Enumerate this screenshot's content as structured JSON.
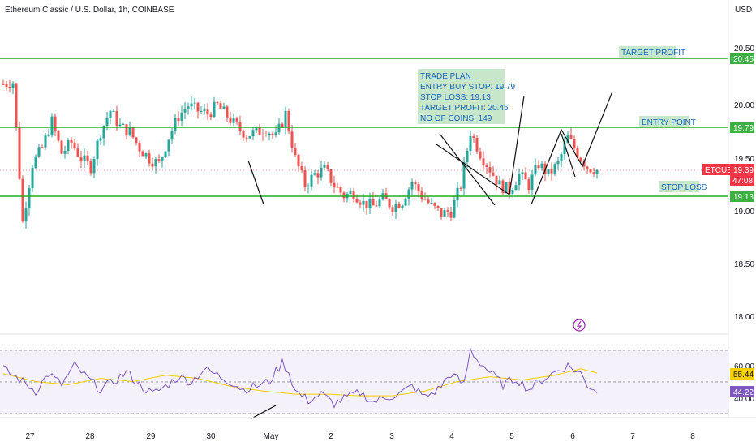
{
  "header": {
    "title": "Ethereum Classic / U.S. Dollar, 1h, COINBASE"
  },
  "currency_label": "USD",
  "colors": {
    "up": "#26a69a",
    "down": "#ef5350",
    "level_line": "#22aa22",
    "level_tag": "#3cb043",
    "label_bg": "#c8e6c9",
    "label_text": "#1565c0",
    "rsi_line": "#7e57c2",
    "rsi_ma": "#f5d000",
    "rsi_band": "#ede7f6",
    "price_tag": "#f23645",
    "grid": "#f0f3fa",
    "axis_text": "#131722"
  },
  "price_axis": {
    "ticks": [
      "20.50",
      "20.00",
      "19.50",
      "19.00",
      "18.50",
      "18.00"
    ]
  },
  "time_axis": {
    "ticks": [
      "27",
      "28",
      "29",
      "30",
      "May",
      "2",
      "3",
      "4",
      "5",
      "6",
      "7",
      "8"
    ]
  },
  "levels": {
    "target": {
      "label": "TARGET PROFIT",
      "price": 20.45,
      "tag": "20.45"
    },
    "entry": {
      "label": "ENTRY POINT",
      "price": 19.79,
      "tag": "19.79"
    },
    "stop": {
      "label": "STOP LOSS",
      "price": 19.13,
      "tag": "19.13"
    }
  },
  "last_price": {
    "symbol": "ETCUSD",
    "price": "19.39",
    "countdown": "47:08"
  },
  "trade_plan": [
    "TRADE PLAN",
    "ENTRY BUY STOP: 19.79",
    "STOP LOSS: 19.13",
    "TARGET PROFIT: 20.45",
    "NO OF COINS: 149"
  ],
  "rsi": {
    "ticks": [
      "60.00",
      "40.00"
    ],
    "rsi_value": "44.22",
    "ma_value": "55.44"
  },
  "chart_data": {
    "type": "candlestick",
    "symbol": "ETCUSD",
    "x_ticks": [
      "27",
      "28",
      "29",
      "30",
      "May",
      "2",
      "3",
      "4",
      "5",
      "6",
      "7",
      "8"
    ],
    "ylim": [
      17.9,
      20.65
    ],
    "levels": [
      19.13,
      19.79,
      20.45
    ],
    "close_path": [
      [
        0,
        20.2
      ],
      [
        3,
        20.22
      ],
      [
        6,
        18.9
      ],
      [
        9,
        19.45
      ],
      [
        12,
        19.6
      ],
      [
        15,
        19.85
      ],
      [
        18,
        19.55
      ],
      [
        21,
        19.65
      ],
      [
        24,
        19.5
      ],
      [
        27,
        19.42
      ],
      [
        30,
        19.75
      ],
      [
        33,
        19.95
      ],
      [
        36,
        19.8
      ],
      [
        39,
        19.75
      ],
      [
        42,
        19.6
      ],
      [
        45,
        19.5
      ],
      [
        48,
        19.45
      ],
      [
        51,
        19.7
      ],
      [
        54,
        19.9
      ],
      [
        57,
        20.0
      ],
      [
        60,
        19.95
      ],
      [
        63,
        19.92
      ],
      [
        66,
        20.0
      ],
      [
        69,
        19.9
      ],
      [
        72,
        19.8
      ],
      [
        75,
        19.72
      ],
      [
        78,
        19.75
      ],
      [
        81,
        19.78
      ],
      [
        84,
        19.7
      ],
      [
        87,
        19.92
      ],
      [
        90,
        19.5
      ],
      [
        93,
        19.25
      ],
      [
        96,
        19.35
      ],
      [
        99,
        19.4
      ],
      [
        102,
        19.25
      ],
      [
        105,
        19.15
      ],
      [
        108,
        19.18
      ],
      [
        111,
        19.08
      ],
      [
        114,
        19.05
      ],
      [
        117,
        19.12
      ],
      [
        120,
        19.05
      ],
      [
        123,
        19.1
      ],
      [
        126,
        19.28
      ],
      [
        129,
        19.15
      ],
      [
        132,
        19.05
      ],
      [
        135,
        18.98
      ],
      [
        138,
        19.0
      ],
      [
        141,
        19.25
      ],
      [
        144,
        19.75
      ],
      [
        147,
        19.55
      ],
      [
        150,
        19.4
      ],
      [
        153,
        19.25
      ],
      [
        156,
        19.2
      ],
      [
        159,
        19.35
      ],
      [
        162,
        19.25
      ],
      [
        165,
        19.45
      ],
      [
        168,
        19.35
      ],
      [
        171,
        19.45
      ],
      [
        174,
        19.7
      ],
      [
        177,
        19.55
      ],
      [
        180,
        19.42
      ],
      [
        183,
        19.39
      ]
    ],
    "rsi_close_path": [
      [
        0,
        58
      ],
      [
        6,
        50
      ],
      [
        10,
        44
      ],
      [
        14,
        55
      ],
      [
        18,
        48
      ],
      [
        22,
        60
      ],
      [
        26,
        52
      ],
      [
        30,
        45
      ],
      [
        34,
        50
      ],
      [
        38,
        56
      ],
      [
        42,
        48
      ],
      [
        46,
        42
      ],
      [
        50,
        47
      ],
      [
        54,
        53
      ],
      [
        58,
        50
      ],
      [
        62,
        58
      ],
      [
        66,
        54
      ],
      [
        70,
        50
      ],
      [
        74,
        45
      ],
      [
        78,
        47
      ],
      [
        82,
        50
      ],
      [
        86,
        62
      ],
      [
        88,
        56
      ],
      [
        90,
        44
      ],
      [
        94,
        38
      ],
      [
        98,
        42
      ],
      [
        102,
        36
      ],
      [
        106,
        40
      ],
      [
        110,
        43
      ],
      [
        114,
        37
      ],
      [
        118,
        40
      ],
      [
        122,
        42
      ],
      [
        126,
        47
      ],
      [
        130,
        40
      ],
      [
        134,
        45
      ],
      [
        138,
        55
      ],
      [
        142,
        48
      ],
      [
        144,
        70
      ],
      [
        146,
        64
      ],
      [
        150,
        56
      ],
      [
        154,
        48
      ],
      [
        158,
        52
      ],
      [
        162,
        45
      ],
      [
        166,
        51
      ],
      [
        170,
        56
      ],
      [
        174,
        60
      ],
      [
        178,
        55
      ],
      [
        180,
        48
      ],
      [
        183,
        44.22
      ]
    ],
    "rsi_ma_path": [
      [
        0,
        55
      ],
      [
        10,
        50
      ],
      [
        20,
        48
      ],
      [
        30,
        52
      ],
      [
        40,
        50
      ],
      [
        50,
        54
      ],
      [
        60,
        52
      ],
      [
        70,
        47
      ],
      [
        80,
        44
      ],
      [
        90,
        42
      ],
      [
        100,
        42
      ],
      [
        110,
        41
      ],
      [
        120,
        41
      ],
      [
        130,
        44
      ],
      [
        140,
        50
      ],
      [
        150,
        53
      ],
      [
        160,
        51
      ],
      [
        170,
        54
      ],
      [
        178,
        58
      ],
      [
        183,
        55.44
      ]
    ]
  }
}
